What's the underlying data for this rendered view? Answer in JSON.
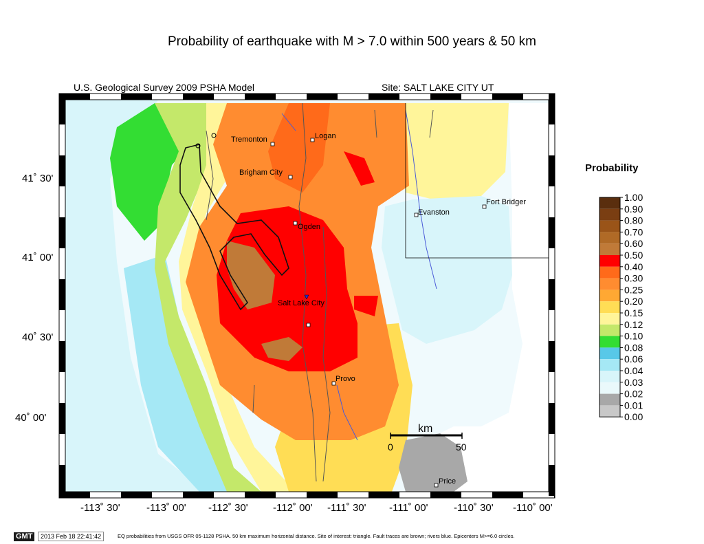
{
  "header": {
    "title": "Probability of earthquake with M > 7.0 within 500 years & 50 km",
    "model": "U.S. Geological Survey 2009 PSHA Model",
    "site": "Site: SALT  LAKE CITY UT"
  },
  "axes": {
    "latitudes": [
      "41˚ 30'",
      "41˚ 00'",
      "40˚ 30'",
      "40˚ 00'"
    ],
    "longitudes": [
      "-113˚ 30'",
      "-113˚ 00'",
      "-112˚ 30'",
      "-112˚ 00'",
      "-111˚ 30'",
      "-111˚ 00'",
      "-110˚ 30'",
      "-110˚ 00'"
    ]
  },
  "cities": [
    {
      "name": "Tremonton"
    },
    {
      "name": "Logan"
    },
    {
      "name": "Brigham City"
    },
    {
      "name": "Ogden"
    },
    {
      "name": "Salt Lake City"
    },
    {
      "name": "Provo"
    },
    {
      "name": "Evanston"
    },
    {
      "name": "Fort Bridger"
    },
    {
      "name": "Price"
    }
  ],
  "scale_bar": {
    "unit": "km",
    "start": "0",
    "end": "50"
  },
  "legend": {
    "title": "Probability",
    "bins": [
      {
        "label": "1.00",
        "color": "#5a2e0e"
      },
      {
        "label": "0.90",
        "color": "#7a3e12"
      },
      {
        "label": "0.80",
        "color": "#9a5418"
      },
      {
        "label": "0.70",
        "color": "#b06a26"
      },
      {
        "label": "0.60",
        "color": "#c07a38"
      },
      {
        "label": "0.50",
        "color": "#ff0000"
      },
      {
        "label": "0.40",
        "color": "#ff6a1a"
      },
      {
        "label": "0.30",
        "color": "#ff8c30"
      },
      {
        "label": "0.25",
        "color": "#ffa833"
      },
      {
        "label": "0.20",
        "color": "#ffdd55"
      },
      {
        "label": "0.15",
        "color": "#fff59a"
      },
      {
        "label": "0.12",
        "color": "#c4e86a"
      },
      {
        "label": "0.10",
        "color": "#33dd33"
      },
      {
        "label": "0.08",
        "color": "#58c8e8"
      },
      {
        "label": "0.06",
        "color": "#a5e8f5"
      },
      {
        "label": "0.04",
        "color": "#d8f5fa"
      },
      {
        "label": "0.03",
        "color": "#eaf9fb"
      },
      {
        "label": "0.02",
        "color": "#a8a8a8"
      },
      {
        "label": "0.01",
        "color": "#c8c8c8"
      },
      {
        "label": "0.00",
        "color": "#ebebeb"
      }
    ],
    "last_label": "0.00"
  },
  "footer": {
    "badge": "GMT",
    "timestamp": "2013 Feb 18 22:41:42",
    "caption": "EQ probabilities from USGS OFR 05-1128 PSHA. 50 km maximum horizontal distance. Site of interest: triangle. Fault traces are brown; rivers blue. Epicenters M>=6.0 circles."
  }
}
